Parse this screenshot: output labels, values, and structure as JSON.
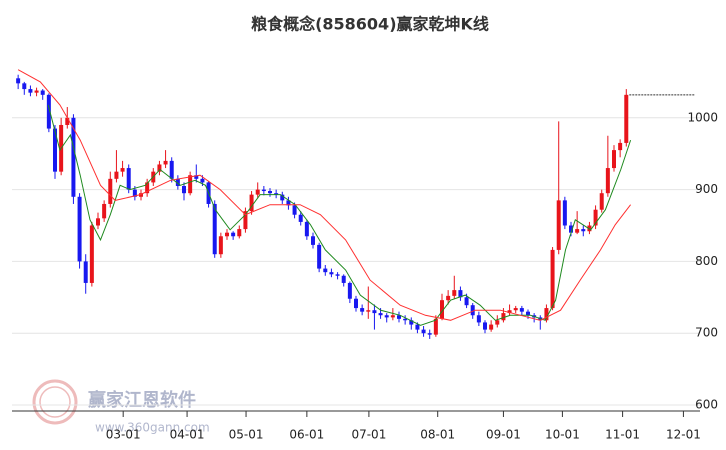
{
  "chart_data": {
    "type": "candlestick",
    "title": "粮食概念(858604)赢家乾坤K线",
    "up_color": "#e8141b",
    "down_color": "#1818f0",
    "grid": true,
    "xlim": [
      -1,
      111
    ],
    "xticks": [
      {
        "value": 17.1,
        "label": "03-01"
      },
      {
        "value": 27.5,
        "label": "04-01"
      },
      {
        "value": 37.1,
        "label": "05-01"
      },
      {
        "value": 47,
        "label": "06-01"
      },
      {
        "value": 57.1,
        "label": "07-01"
      },
      {
        "value": 68.3,
        "label": "08-01"
      },
      {
        "value": 79,
        "label": "09-01"
      },
      {
        "value": 88.6,
        "label": "10-01"
      },
      {
        "value": 98.4,
        "label": "11-01"
      },
      {
        "value": 108.3,
        "label": "12-01"
      }
    ],
    "ylim": [
      600,
      1100
    ],
    "yticks": [
      600,
      700,
      800,
      900,
      1000
    ],
    "x": [
      0,
      1,
      2,
      3,
      4,
      5,
      6,
      7,
      8,
      9,
      10,
      11,
      12,
      13,
      14,
      15,
      16,
      17,
      18,
      19,
      20,
      21,
      22,
      23,
      24,
      25,
      26,
      27,
      28,
      29,
      30,
      31,
      32,
      33,
      34,
      35,
      36,
      37,
      38,
      39,
      40,
      41,
      42,
      43,
      44,
      45,
      46,
      47,
      48,
      49,
      50,
      51,
      52,
      53,
      54,
      55,
      56,
      57,
      58,
      59,
      60,
      61,
      62,
      63,
      64,
      65,
      66,
      67,
      68,
      69,
      70,
      71,
      72,
      73,
      74,
      75,
      76,
      77,
      78,
      79,
      80,
      81,
      82,
      83,
      84,
      85,
      86,
      87,
      88,
      89,
      90,
      91,
      92,
      93,
      94,
      95,
      96,
      97,
      98,
      99
    ],
    "ohlc": [
      [
        1055,
        1060,
        1040,
        1048
      ],
      [
        1048,
        1050,
        1032,
        1040
      ],
      [
        1040,
        1045,
        1030,
        1035
      ],
      [
        1035,
        1042,
        1030,
        1038
      ],
      [
        1038,
        1040,
        1025,
        1032
      ],
      [
        1032,
        1034,
        980,
        985
      ],
      [
        985,
        990,
        915,
        925
      ],
      [
        925,
        1000,
        920,
        990
      ],
      [
        990,
        1015,
        985,
        1000
      ],
      [
        1000,
        1005,
        880,
        890
      ],
      [
        890,
        895,
        790,
        800
      ],
      [
        800,
        810,
        755,
        770
      ],
      [
        770,
        855,
        765,
        850
      ],
      [
        850,
        868,
        845,
        860
      ],
      [
        860,
        885,
        855,
        880
      ],
      [
        880,
        925,
        875,
        915
      ],
      [
        915,
        955,
        910,
        925
      ],
      [
        925,
        940,
        918,
        930
      ],
      [
        930,
        935,
        895,
        900
      ],
      [
        900,
        905,
        885,
        890
      ],
      [
        890,
        900,
        885,
        895
      ],
      [
        895,
        915,
        890,
        910
      ],
      [
        910,
        930,
        905,
        925
      ],
      [
        925,
        940,
        920,
        935
      ],
      [
        935,
        955,
        930,
        940
      ],
      [
        940,
        945,
        910,
        915
      ],
      [
        915,
        920,
        900,
        905
      ],
      [
        905,
        910,
        885,
        895
      ],
      [
        895,
        925,
        892,
        920
      ],
      [
        920,
        935,
        910,
        915
      ],
      [
        915,
        920,
        905,
        910
      ],
      [
        910,
        912,
        875,
        880
      ],
      [
        880,
        885,
        805,
        810
      ],
      [
        810,
        840,
        805,
        835
      ],
      [
        835,
        845,
        830,
        840
      ],
      [
        840,
        842,
        830,
        835
      ],
      [
        835,
        850,
        832,
        845
      ],
      [
        845,
        875,
        840,
        870
      ],
      [
        870,
        898,
        865,
        893
      ],
      [
        893,
        910,
        888,
        900
      ],
      [
        900,
        905,
        892,
        898
      ],
      [
        898,
        902,
        890,
        895
      ],
      [
        895,
        900,
        888,
        893
      ],
      [
        893,
        897,
        880,
        885
      ],
      [
        885,
        890,
        872,
        878
      ],
      [
        878,
        882,
        860,
        865
      ],
      [
        865,
        870,
        850,
        855
      ],
      [
        855,
        858,
        830,
        835
      ],
      [
        835,
        840,
        818,
        823
      ],
      [
        823,
        826,
        785,
        790
      ],
      [
        790,
        795,
        780,
        785
      ],
      [
        785,
        790,
        778,
        782
      ],
      [
        782,
        785,
        775,
        780
      ],
      [
        780,
        782,
        765,
        770
      ],
      [
        770,
        772,
        742,
        748
      ],
      [
        748,
        752,
        730,
        735
      ],
      [
        735,
        740,
        725,
        730
      ],
      [
        730,
        765,
        720,
        732
      ],
      [
        732,
        740,
        705,
        728
      ],
      [
        728,
        735,
        720,
        725
      ],
      [
        725,
        728,
        715,
        722
      ],
      [
        722,
        735,
        718,
        725
      ],
      [
        725,
        730,
        715,
        720
      ],
      [
        720,
        725,
        712,
        718
      ],
      [
        718,
        722,
        705,
        712
      ],
      [
        712,
        715,
        700,
        705
      ],
      [
        705,
        710,
        695,
        700
      ],
      [
        700,
        705,
        692,
        698
      ],
      [
        698,
        725,
        695,
        720
      ],
      [
        720,
        755,
        718,
        746
      ],
      [
        746,
        760,
        740,
        752
      ],
      [
        752,
        780,
        748,
        760
      ],
      [
        760,
        765,
        745,
        750
      ],
      [
        750,
        755,
        735,
        739
      ],
      [
        739,
        742,
        720,
        725
      ],
      [
        725,
        730,
        710,
        715
      ],
      [
        715,
        718,
        700,
        705
      ],
      [
        705,
        718,
        702,
        712
      ],
      [
        712,
        725,
        708,
        718
      ],
      [
        718,
        735,
        715,
        728
      ],
      [
        728,
        740,
        725,
        732
      ],
      [
        732,
        738,
        728,
        735
      ],
      [
        735,
        738,
        725,
        730
      ],
      [
        730,
        733,
        720,
        725
      ],
      [
        725,
        728,
        715,
        722
      ],
      [
        722,
        725,
        705,
        718
      ],
      [
        718,
        740,
        715,
        735
      ],
      [
        735,
        820,
        732,
        816
      ],
      [
        816,
        995,
        810,
        885
      ],
      [
        885,
        890,
        845,
        850
      ],
      [
        850,
        855,
        835,
        840
      ],
      [
        840,
        870,
        838,
        845
      ],
      [
        845,
        850,
        835,
        842
      ],
      [
        842,
        855,
        838,
        850
      ],
      [
        850,
        878,
        845,
        872
      ],
      [
        872,
        900,
        868,
        895
      ],
      [
        895,
        975,
        890,
        930
      ],
      [
        930,
        962,
        925,
        955
      ],
      [
        955,
        970,
        945,
        965
      ],
      [
        965,
        1040,
        960,
        1032
      ]
    ],
    "series": [
      {
        "color": "#1f8a1f",
        "x": [
          4.9,
          6.8,
          8.5,
          10.1,
          11.7,
          13.4,
          15,
          16.6,
          18.2,
          20.7,
          23.1,
          26.4,
          28.8,
          30.5,
          32.1,
          34.5,
          37,
          39.4,
          42.7,
          45.1,
          47.6,
          50,
          53.3,
          55.7,
          59,
          62.2,
          65.5,
          67.9,
          70.4,
          72.8,
          75.2,
          77.7,
          80.1,
          83.4,
          85.8,
          87.5,
          89.1,
          90.7,
          93.2,
          95.6,
          98.1,
          99.7
        ],
        "values": [
          1018,
          955,
          976,
          920,
          858,
          830,
          865,
          906,
          900,
          906,
          928,
          906,
          913,
          906,
          872,
          844,
          865,
          893,
          893,
          879,
          851,
          816,
          788,
          753,
          732,
          725,
          711,
          718,
          746,
          753,
          739,
          718,
          725,
          725,
          718,
          746,
          816,
          858,
          844,
          872,
          928,
          969
        ]
      },
      {
        "color": "#ff3030",
        "x": [
          0,
          3.6,
          6.8,
          10.1,
          13.4,
          15.8,
          19.9,
          24.8,
          29.6,
          32.9,
          37,
          41,
          45.9,
          49.2,
          53.3,
          57.3,
          62.2,
          66.3,
          70.4,
          74.4,
          78.5,
          81.8,
          85,
          88.3,
          91.5,
          94.8,
          97.2,
          99.7
        ],
        "values": [
          1067,
          1050,
          1018,
          969,
          906,
          885,
          893,
          913,
          920,
          900,
          865,
          879,
          879,
          865,
          830,
          774,
          739,
          725,
          718,
          732,
          732,
          725,
          718,
          732,
          774,
          816,
          851,
          879
        ]
      }
    ]
  },
  "watermark": {
    "brand": "赢家江恩软件",
    "url": "www.360gann.com"
  }
}
